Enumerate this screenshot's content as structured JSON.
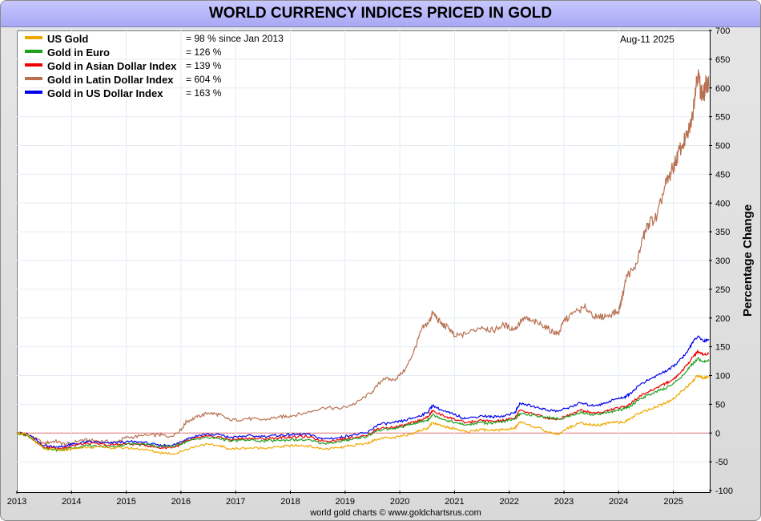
{
  "title": "WORLD CURRENCY INDICES PRICED IN GOLD",
  "date_label": "Aug-11  2025",
  "credit": "world gold charts © www.goldchartsrus.com",
  "chart_data": {
    "type": "line",
    "title": "WORLD CURRENCY INDICES PRICED IN GOLD",
    "ylabel": "Percentage Change",
    "xlabel": "",
    "ylim": [
      -100,
      700
    ],
    "xlim": [
      2013.0,
      2025.65
    ],
    "y_ticks": [
      -100,
      -50,
      0,
      50,
      100,
      150,
      200,
      250,
      300,
      350,
      400,
      450,
      500,
      550,
      600,
      650,
      700
    ],
    "x_ticks": [
      "2013",
      "2014",
      "2015",
      "2016",
      "2017",
      "2018",
      "2019",
      "2020",
      "2021",
      "2022",
      "2023",
      "2024",
      "2025"
    ],
    "grid": true,
    "legend_position": "top-left",
    "series": [
      {
        "name": "Gold in Latin Dollar Index",
        "legend_value": "= 604 %",
        "color": "#b87050",
        "points": [
          [
            2013.0,
            0
          ],
          [
            2013.2,
            -3
          ],
          [
            2013.5,
            -18
          ],
          [
            2013.7,
            -14
          ],
          [
            2013.9,
            -20
          ],
          [
            2014.2,
            -12
          ],
          [
            2014.5,
            -14
          ],
          [
            2014.8,
            -16
          ],
          [
            2015.0,
            -8
          ],
          [
            2015.3,
            -5
          ],
          [
            2015.6,
            -3
          ],
          [
            2015.8,
            -6
          ],
          [
            2016.0,
            5
          ],
          [
            2016.1,
            20
          ],
          [
            2016.3,
            28
          ],
          [
            2016.5,
            35
          ],
          [
            2016.7,
            32
          ],
          [
            2016.9,
            22
          ],
          [
            2017.2,
            25
          ],
          [
            2017.5,
            23
          ],
          [
            2017.8,
            28
          ],
          [
            2018.0,
            30
          ],
          [
            2018.3,
            35
          ],
          [
            2018.6,
            45
          ],
          [
            2018.9,
            42
          ],
          [
            2019.2,
            52
          ],
          [
            2019.5,
            72
          ],
          [
            2019.7,
            95
          ],
          [
            2019.9,
            92
          ],
          [
            2020.1,
            110
          ],
          [
            2020.25,
            140
          ],
          [
            2020.4,
            180
          ],
          [
            2020.55,
            195
          ],
          [
            2020.6,
            210
          ],
          [
            2020.75,
            190
          ],
          [
            2020.9,
            182
          ],
          [
            2021.0,
            168
          ],
          [
            2021.2,
            172
          ],
          [
            2021.5,
            185
          ],
          [
            2021.7,
            178
          ],
          [
            2021.9,
            188
          ],
          [
            2022.1,
            180
          ],
          [
            2022.25,
            200
          ],
          [
            2022.4,
            195
          ],
          [
            2022.6,
            188
          ],
          [
            2022.8,
            176
          ],
          [
            2022.9,
            172
          ],
          [
            2023.0,
            195
          ],
          [
            2023.2,
            210
          ],
          [
            2023.4,
            218
          ],
          [
            2023.6,
            200
          ],
          [
            2023.8,
            205
          ],
          [
            2024.0,
            212
          ],
          [
            2024.05,
            230
          ],
          [
            2024.15,
            275
          ],
          [
            2024.3,
            285
          ],
          [
            2024.45,
            340
          ],
          [
            2024.55,
            365
          ],
          [
            2024.7,
            375
          ],
          [
            2024.85,
            430
          ],
          [
            2024.95,
            450
          ],
          [
            2025.05,
            475
          ],
          [
            2025.15,
            500
          ],
          [
            2025.25,
            515
          ],
          [
            2025.35,
            550
          ],
          [
            2025.4,
            600
          ],
          [
            2025.45,
            625
          ],
          [
            2025.5,
            595
          ],
          [
            2025.55,
            585
          ],
          [
            2025.6,
            610
          ],
          [
            2025.65,
            604
          ]
        ]
      },
      {
        "name": "Gold in US Dollar Index",
        "legend_value": "= 163 %",
        "color": "#0000ee",
        "points": [
          [
            2013.0,
            0
          ],
          [
            2013.2,
            -2
          ],
          [
            2013.5,
            -22
          ],
          [
            2013.8,
            -24
          ],
          [
            2014.0,
            -20
          ],
          [
            2014.3,
            -15
          ],
          [
            2014.7,
            -18
          ],
          [
            2015.0,
            -15
          ],
          [
            2015.3,
            -16
          ],
          [
            2015.6,
            -22
          ],
          [
            2015.9,
            -20
          ],
          [
            2016.1,
            -10
          ],
          [
            2016.4,
            -2
          ],
          [
            2016.7,
            -3
          ],
          [
            2016.9,
            -8
          ],
          [
            2017.2,
            -5
          ],
          [
            2017.5,
            -6
          ],
          [
            2017.8,
            -4
          ],
          [
            2018.0,
            -3
          ],
          [
            2018.3,
            -2
          ],
          [
            2018.6,
            -10
          ],
          [
            2018.9,
            -8
          ],
          [
            2019.1,
            -4
          ],
          [
            2019.4,
            0
          ],
          [
            2019.6,
            15
          ],
          [
            2019.9,
            18
          ],
          [
            2020.1,
            22
          ],
          [
            2020.3,
            28
          ],
          [
            2020.5,
            35
          ],
          [
            2020.6,
            48
          ],
          [
            2020.8,
            38
          ],
          [
            2021.0,
            32
          ],
          [
            2021.2,
            25
          ],
          [
            2021.5,
            30
          ],
          [
            2021.7,
            28
          ],
          [
            2021.9,
            30
          ],
          [
            2022.1,
            35
          ],
          [
            2022.2,
            52
          ],
          [
            2022.5,
            45
          ],
          [
            2022.7,
            40
          ],
          [
            2022.9,
            38
          ],
          [
            2023.1,
            45
          ],
          [
            2023.3,
            52
          ],
          [
            2023.5,
            48
          ],
          [
            2023.7,
            50
          ],
          [
            2023.9,
            58
          ],
          [
            2024.1,
            62
          ],
          [
            2024.2,
            68
          ],
          [
            2024.4,
            85
          ],
          [
            2024.6,
            95
          ],
          [
            2024.8,
            105
          ],
          [
            2024.95,
            112
          ],
          [
            2025.1,
            125
          ],
          [
            2025.25,
            140
          ],
          [
            2025.35,
            158
          ],
          [
            2025.45,
            168
          ],
          [
            2025.55,
            160
          ],
          [
            2025.65,
            163
          ]
        ]
      },
      {
        "name": "Gold in Asian Dollar Index",
        "legend_value": "= 139 %",
        "color": "#ee0000",
        "points": [
          [
            2013.0,
            0
          ],
          [
            2013.2,
            -3
          ],
          [
            2013.5,
            -25
          ],
          [
            2013.8,
            -27
          ],
          [
            2014.0,
            -22
          ],
          [
            2014.3,
            -18
          ],
          [
            2014.7,
            -21
          ],
          [
            2015.0,
            -19
          ],
          [
            2015.3,
            -20
          ],
          [
            2015.6,
            -26
          ],
          [
            2015.9,
            -24
          ],
          [
            2016.1,
            -14
          ],
          [
            2016.4,
            -6
          ],
          [
            2016.7,
            -7
          ],
          [
            2016.9,
            -12
          ],
          [
            2017.2,
            -9
          ],
          [
            2017.5,
            -10
          ],
          [
            2017.8,
            -8
          ],
          [
            2018.0,
            -7
          ],
          [
            2018.3,
            -6
          ],
          [
            2018.6,
            -14
          ],
          [
            2018.9,
            -12
          ],
          [
            2019.1,
            -8
          ],
          [
            2019.4,
            -4
          ],
          [
            2019.6,
            8
          ],
          [
            2019.9,
            10
          ],
          [
            2020.1,
            14
          ],
          [
            2020.3,
            20
          ],
          [
            2020.5,
            27
          ],
          [
            2020.6,
            38
          ],
          [
            2020.8,
            30
          ],
          [
            2021.0,
            24
          ],
          [
            2021.2,
            18
          ],
          [
            2021.5,
            22
          ],
          [
            2021.7,
            20
          ],
          [
            2021.9,
            22
          ],
          [
            2022.1,
            26
          ],
          [
            2022.2,
            40
          ],
          [
            2022.5,
            32
          ],
          [
            2022.7,
            26
          ],
          [
            2022.9,
            24
          ],
          [
            2023.1,
            32
          ],
          [
            2023.3,
            40
          ],
          [
            2023.5,
            35
          ],
          [
            2023.7,
            36
          ],
          [
            2023.9,
            42
          ],
          [
            2024.1,
            45
          ],
          [
            2024.2,
            50
          ],
          [
            2024.4,
            65
          ],
          [
            2024.6,
            74
          ],
          [
            2024.8,
            84
          ],
          [
            2024.95,
            90
          ],
          [
            2025.1,
            102
          ],
          [
            2025.25,
            118
          ],
          [
            2025.35,
            132
          ],
          [
            2025.45,
            142
          ],
          [
            2025.55,
            136
          ],
          [
            2025.65,
            139
          ]
        ]
      },
      {
        "name": "Gold in Euro",
        "legend_value": "= 126 %",
        "color": "#20a020",
        "points": [
          [
            2013.0,
            0
          ],
          [
            2013.2,
            -4
          ],
          [
            2013.5,
            -27
          ],
          [
            2013.8,
            -30
          ],
          [
            2014.0,
            -26
          ],
          [
            2014.3,
            -22
          ],
          [
            2014.7,
            -24
          ],
          [
            2015.0,
            -20
          ],
          [
            2015.3,
            -18
          ],
          [
            2015.6,
            -24
          ],
          [
            2015.9,
            -22
          ],
          [
            2016.1,
            -15
          ],
          [
            2016.4,
            -8
          ],
          [
            2016.7,
            -9
          ],
          [
            2016.9,
            -14
          ],
          [
            2017.2,
            -12
          ],
          [
            2017.5,
            -14
          ],
          [
            2017.8,
            -13
          ],
          [
            2018.0,
            -12
          ],
          [
            2018.3,
            -12
          ],
          [
            2018.6,
            -18
          ],
          [
            2018.9,
            -15
          ],
          [
            2019.1,
            -11
          ],
          [
            2019.4,
            -6
          ],
          [
            2019.6,
            5
          ],
          [
            2019.9,
            8
          ],
          [
            2020.1,
            12
          ],
          [
            2020.3,
            18
          ],
          [
            2020.5,
            22
          ],
          [
            2020.6,
            32
          ],
          [
            2020.8,
            24
          ],
          [
            2021.0,
            18
          ],
          [
            2021.2,
            14
          ],
          [
            2021.5,
            18
          ],
          [
            2021.7,
            17
          ],
          [
            2021.9,
            20
          ],
          [
            2022.1,
            24
          ],
          [
            2022.2,
            34
          ],
          [
            2022.5,
            30
          ],
          [
            2022.7,
            28
          ],
          [
            2022.9,
            24
          ],
          [
            2023.1,
            30
          ],
          [
            2023.3,
            36
          ],
          [
            2023.5,
            32
          ],
          [
            2023.7,
            34
          ],
          [
            2023.9,
            38
          ],
          [
            2024.1,
            42
          ],
          [
            2024.2,
            46
          ],
          [
            2024.4,
            60
          ],
          [
            2024.6,
            68
          ],
          [
            2024.8,
            76
          ],
          [
            2024.95,
            82
          ],
          [
            2025.1,
            94
          ],
          [
            2025.25,
            108
          ],
          [
            2025.35,
            120
          ],
          [
            2025.45,
            130
          ],
          [
            2025.55,
            124
          ],
          [
            2025.65,
            126
          ]
        ]
      },
      {
        "name": "US Gold",
        "legend_value": "= 98 % since Jan 2013",
        "color": "#f0a800",
        "points": [
          [
            2013.0,
            0
          ],
          [
            2013.2,
            -3
          ],
          [
            2013.5,
            -28
          ],
          [
            2013.8,
            -30
          ],
          [
            2014.0,
            -28
          ],
          [
            2014.3,
            -24
          ],
          [
            2014.7,
            -26
          ],
          [
            2015.0,
            -26
          ],
          [
            2015.3,
            -28
          ],
          [
            2015.6,
            -34
          ],
          [
            2015.9,
            -36
          ],
          [
            2016.1,
            -28
          ],
          [
            2016.4,
            -20
          ],
          [
            2016.7,
            -22
          ],
          [
            2016.9,
            -28
          ],
          [
            2017.2,
            -26
          ],
          [
            2017.5,
            -26
          ],
          [
            2017.8,
            -24
          ],
          [
            2018.0,
            -22
          ],
          [
            2018.3,
            -22
          ],
          [
            2018.6,
            -28
          ],
          [
            2018.9,
            -26
          ],
          [
            2019.1,
            -22
          ],
          [
            2019.4,
            -18
          ],
          [
            2019.6,
            -10
          ],
          [
            2019.9,
            -8
          ],
          [
            2020.1,
            -4
          ],
          [
            2020.3,
            2
          ],
          [
            2020.5,
            8
          ],
          [
            2020.6,
            18
          ],
          [
            2020.8,
            12
          ],
          [
            2021.0,
            8
          ],
          [
            2021.2,
            2
          ],
          [
            2021.5,
            6
          ],
          [
            2021.7,
            4
          ],
          [
            2021.9,
            6
          ],
          [
            2022.1,
            8
          ],
          [
            2022.2,
            20
          ],
          [
            2022.5,
            10
          ],
          [
            2022.7,
            2
          ],
          [
            2022.9,
            -2
          ],
          [
            2023.1,
            10
          ],
          [
            2023.3,
            18
          ],
          [
            2023.5,
            14
          ],
          [
            2023.7,
            14
          ],
          [
            2023.9,
            20
          ],
          [
            2024.1,
            18
          ],
          [
            2024.2,
            24
          ],
          [
            2024.4,
            36
          ],
          [
            2024.6,
            42
          ],
          [
            2024.8,
            50
          ],
          [
            2024.95,
            56
          ],
          [
            2025.1,
            68
          ],
          [
            2025.25,
            80
          ],
          [
            2025.35,
            90
          ],
          [
            2025.45,
            100
          ],
          [
            2025.55,
            95
          ],
          [
            2025.65,
            98
          ]
        ]
      }
    ]
  }
}
